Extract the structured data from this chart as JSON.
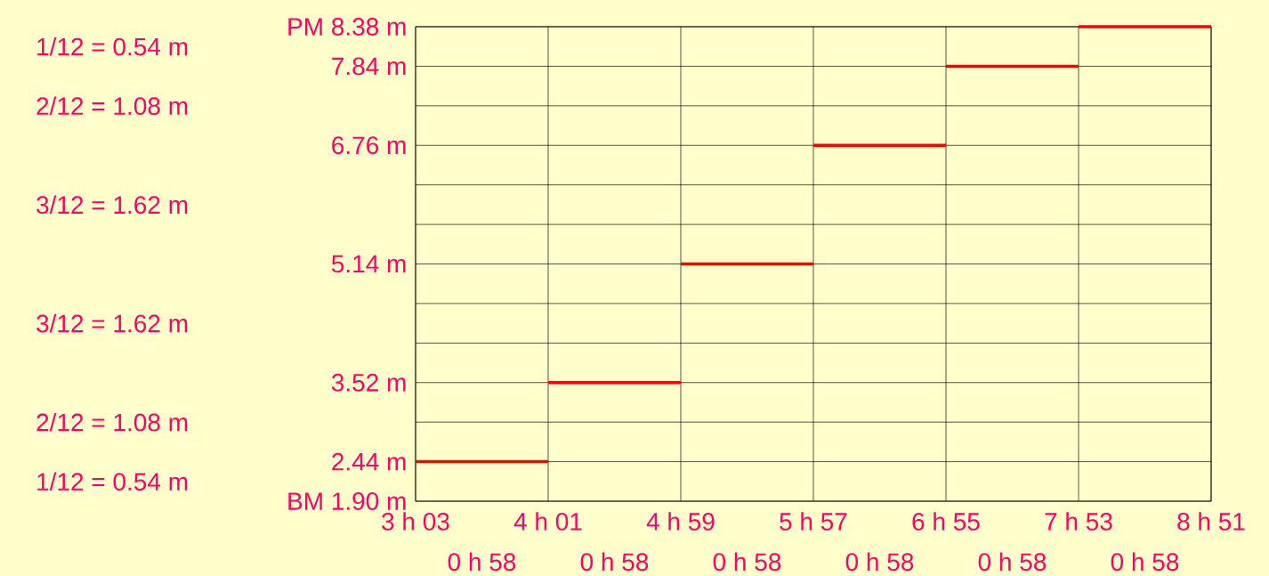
{
  "chart_data": {
    "type": "step",
    "categories": [
      "3 h 03",
      "4 h 01",
      "4 h 59",
      "5 h 57",
      "6 h 55",
      "7 h 53",
      "8 h 51"
    ],
    "values": [
      2.44,
      3.52,
      5.14,
      6.76,
      7.84,
      8.38,
      8.38
    ],
    "color": "#ff0000",
    "ylim": [
      1.9,
      8.38
    ],
    "yticks": [
      {
        "value": 1.9,
        "label": "BM 1.90 m"
      },
      {
        "value": 2.44,
        "label": "2.44 m"
      },
      {
        "value": 2.98,
        "label": null
      },
      {
        "value": 3.52,
        "label": "3.52 m"
      },
      {
        "value": 4.06,
        "label": null
      },
      {
        "value": 4.6,
        "label": null
      },
      {
        "value": 5.14,
        "label": "5.14 m"
      },
      {
        "value": 5.68,
        "label": null
      },
      {
        "value": 6.22,
        "label": null
      },
      {
        "value": 6.76,
        "label": "6.76 m"
      },
      {
        "value": 7.3,
        "label": null
      },
      {
        "value": 7.84,
        "label": "7.84 m"
      },
      {
        "value": 8.38,
        "label": "PM 8.38 m"
      }
    ],
    "grid": true,
    "annotations": [
      "1/12 = 0.54 m",
      "2/12 = 1.08 m",
      "3/12 = 1.62 m",
      "3/12 = 1.62 m",
      "2/12 = 1.08 m",
      "1/12 = 0.54 m",
      "0 h 58",
      "0 h 58",
      "0 h 58",
      "0 h 58",
      "0 h 58",
      "0 h 58"
    ]
  }
}
